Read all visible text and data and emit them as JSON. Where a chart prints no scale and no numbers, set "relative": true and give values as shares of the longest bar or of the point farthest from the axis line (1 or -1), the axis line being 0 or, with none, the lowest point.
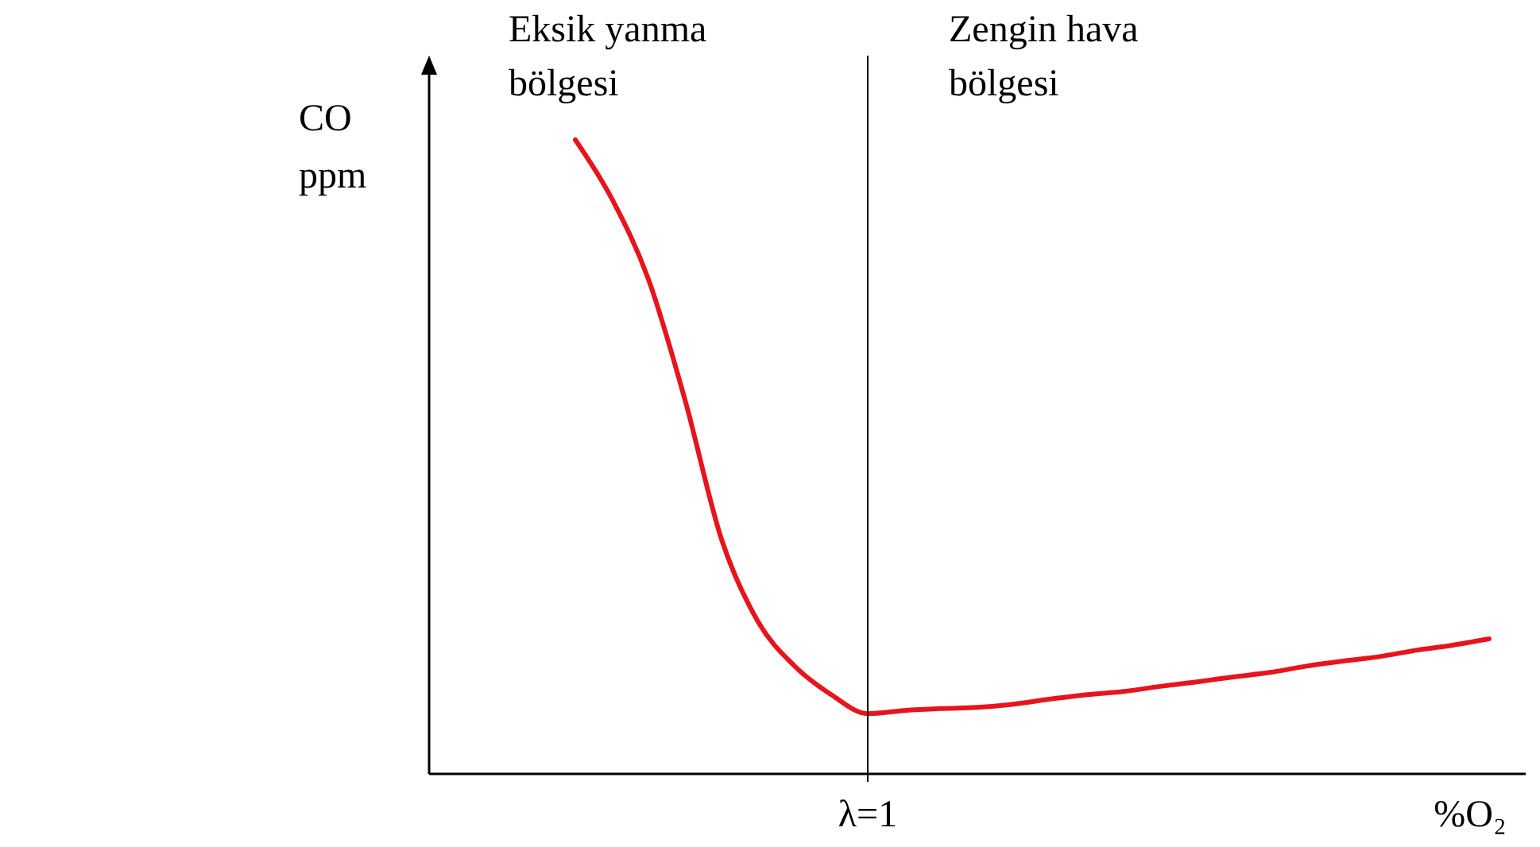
{
  "chart_data": {
    "type": "line",
    "relative": true,
    "ylabel": "CO ppm",
    "xlabel": "%O₂",
    "categories": [
      null,
      null,
      null,
      null,
      null,
      null,
      null,
      null,
      null,
      null,
      null,
      null,
      null,
      null,
      null,
      null,
      null,
      null,
      null,
      null,
      null,
      null,
      null,
      null,
      null,
      null,
      null,
      null,
      null,
      null,
      null
    ],
    "series": [
      {
        "color": "#e8141c",
        "values": [
          null,
          null,
          null,
          null,
          1,
          0.907,
          0.78,
          0.59,
          0.37,
          0.24,
          0.17,
          0.125,
          0.095,
          0.1,
          0.103,
          0.105,
          0.11,
          0.118,
          0.125,
          0.13,
          0.138,
          0.145,
          0.153,
          0.16,
          0.17,
          0.178,
          0.185,
          0.195,
          0.203,
          0.213,
          null
        ]
      }
    ],
    "annotations": [
      "Eksik yanma bölgesi",
      "Zengin hava bölgesi",
      "λ=1"
    ],
    "line_style": "solid"
  }
}
